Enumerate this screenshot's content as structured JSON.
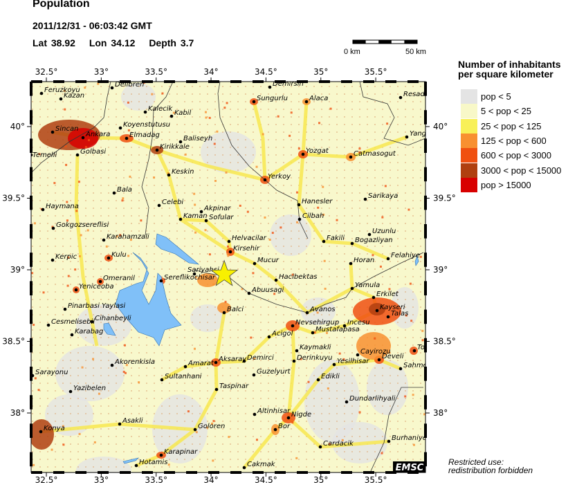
{
  "header": {
    "title": "Population",
    "datetime": "2011/12/31 - 06:03:42 GMT",
    "lat": "Lat 38.92",
    "lon": "Lon  34.12",
    "depth": "Depth  3.7"
  },
  "scale_bar": {
    "start": "0 km",
    "end": "50 km"
  },
  "axes": {
    "lon_ticks": [
      "32.5°",
      "33°",
      "33.5°",
      "34°",
      "34.5°",
      "35°",
      "35.5°"
    ],
    "lat_ticks": [
      "40°",
      "39.5°",
      "39°",
      "38.5°",
      "38°"
    ]
  },
  "epicenter": {
    "lat": 38.92,
    "lon": 34.12,
    "marker": "star-icon",
    "color": "#f8f000"
  },
  "legend": {
    "title_line1": "Number of inhabitants",
    "title_line2": "per square kilometer",
    "items": [
      {
        "label": "pop < 5",
        "color": "#e4e4e4"
      },
      {
        "label": "5 < pop < 25",
        "color": "#f8f8c8"
      },
      {
        "label": "25 < pop < 125",
        "color": "#f8f058"
      },
      {
        "label": "125 < pop < 600",
        "color": "#f89030"
      },
      {
        "label": "600 < pop < 3000",
        "color": "#f05010"
      },
      {
        "label": "3000 < pop < 15000",
        "color": "#b04010"
      },
      {
        "label": "pop > 15000",
        "color": "#d80000"
      }
    ]
  },
  "lake_color": "#80c0f8",
  "cities": [
    "Delibren",
    "Feruzkoyu",
    "Kazan",
    "Sincan",
    "Ankara",
    "Temelli",
    "Golbasi",
    "Kalecik",
    "Kabil",
    "Koyenstutusu",
    "Elmadag",
    "Baliseyh",
    "Kirikkale",
    "Keskin",
    "Bala",
    "Celebi",
    "Haymana",
    "Akpinar",
    "Kaman",
    "Sofular",
    "Gokgozsereflisi",
    "Demirsin",
    "Sungurlu",
    "Alaca",
    "Resadiye",
    "Yangi",
    "Yozgat",
    "Catmasogut",
    "Yerkoy",
    "Hanesler",
    "Sarikaya",
    "Cilbah",
    "Karahamzali",
    "Kerpic",
    "Kulu",
    "Omeranil",
    "Yeniceoba",
    "Sereflikochisar",
    "Sariyahsi",
    "Pinarbasi Yaylasi",
    "Cesmelisebil",
    "Cihanbeyli",
    "Karabag",
    "Akorenkisla",
    "Sarayonu",
    "Amarat",
    "Aksaray",
    "Sultanhani",
    "Yazibelen",
    "Taspinar",
    "Asakli",
    "Goloren",
    "Konya",
    "Karapinar",
    "Hotamis",
    "Uzunlu",
    "Fakili",
    "Bogazliyan",
    "Helvacilar",
    "Kirsehir",
    "Felahiye",
    "Mucur",
    "Horan",
    "Hacibektas",
    "Yamula",
    "Abuusagi",
    "Erkilet",
    "Balci",
    "Kayseri",
    "Avanos",
    "Talas",
    "Nevsehirgup",
    "Incesu",
    "Mustafapasa",
    "Acigol",
    "Kaymakli",
    "Cayirozu",
    "Tomarza",
    "Develi",
    "Demirci",
    "Derinkuyu",
    "Yesilhisar",
    "Sahmeran",
    "Guzelyurt",
    "Edikli",
    "Dundarlihyali",
    "Altinhisar",
    "Nigde",
    "Bor",
    "Burhaniye",
    "Cardacik",
    "Cakmak"
  ],
  "logo": "EMSC",
  "restricted_line1": "Restricted use:",
  "restricted_line2": "redistribution forbidden"
}
